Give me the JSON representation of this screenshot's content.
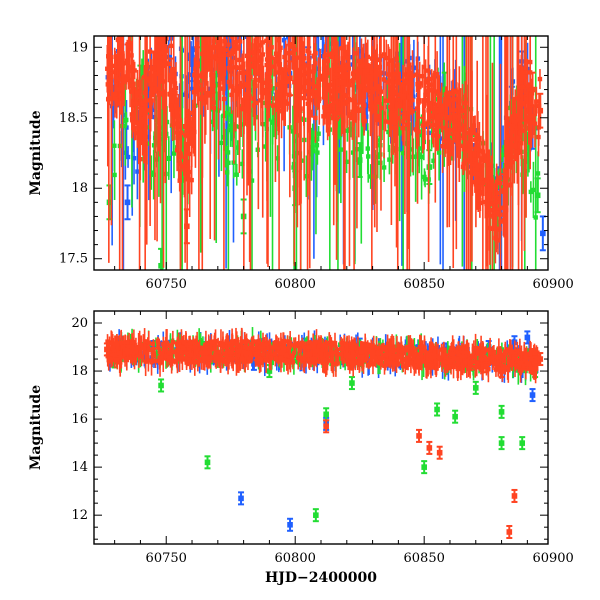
{
  "chart_data": [
    {
      "type": "scatter",
      "panel": "top",
      "title": "",
      "xlabel": "",
      "ylabel": "Magnitude",
      "xlim": [
        60722,
        60898
      ],
      "ylim": [
        19.08,
        17.42
      ],
      "y_inverted": true,
      "xticks": [
        "60750",
        "60800",
        "60850",
        "60900"
      ],
      "yticks": [
        "17.5",
        "18",
        "18.5",
        "19"
      ],
      "series": [
        {
          "color": "#2060ff",
          "points": [
            [
              60732,
              18.8
            ],
            [
              60735,
              17.9
            ],
            [
              60748,
              18.92
            ],
            [
              60760,
              18.88
            ],
            [
              60775,
              18.95
            ],
            [
              60790,
              18.82
            ],
            [
              60805,
              18.88
            ],
            [
              60820,
              18.85
            ],
            [
              60838,
              18.6
            ],
            [
              60840,
              18.78
            ],
            [
              60845,
              18.7
            ],
            [
              60860,
              18.55
            ],
            [
              60870,
              18.3
            ],
            [
              60878,
              17.95
            ],
            [
              60884,
              18.6
            ],
            [
              60888,
              18.85
            ],
            [
              60892,
              18.4
            ],
            [
              60896,
              17.68
            ]
          ]
        },
        {
          "color": "#22dd33",
          "points": [
            [
              60728,
              17.9
            ],
            [
              60740,
              18.75
            ],
            [
              60748,
              17.45
            ],
            [
              60765,
              18.8
            ],
            [
              60780,
              17.8
            ],
            [
              60790,
              18.6
            ],
            [
              60800,
              18.0
            ],
            [
              60812,
              18.7
            ],
            [
              60825,
              18.2
            ],
            [
              60840,
              18.5
            ],
            [
              60852,
              18.15
            ],
            [
              60858,
              18.7
            ],
            [
              60870,
              18.25
            ],
            [
              60878,
              17.85
            ],
            [
              60885,
              18.5
            ],
            [
              60894,
              17.95
            ]
          ]
        },
        {
          "color": "#ff4422",
          "points": [
            [
              60728,
              18.85
            ],
            [
              60735,
              18.9
            ],
            [
              60740,
              18.45
            ],
            [
              60745,
              18.85
            ],
            [
              60752,
              18.8
            ],
            [
              60758,
              17.73
            ],
            [
              60762,
              18.88
            ],
            [
              60768,
              18.8
            ],
            [
              60775,
              18.85
            ],
            [
              60782,
              18.78
            ],
            [
              60790,
              18.82
            ],
            [
              60798,
              18.78
            ],
            [
              60805,
              18.75
            ],
            [
              60812,
              18.7
            ],
            [
              60818,
              18.75
            ],
            [
              60825,
              18.72
            ],
            [
              60832,
              18.72
            ],
            [
              60838,
              18.68
            ],
            [
              60842,
              18.65
            ],
            [
              60848,
              18.62
            ],
            [
              60852,
              18.6
            ],
            [
              60856,
              18.55
            ],
            [
              60860,
              18.5
            ],
            [
              60864,
              18.42
            ],
            [
              60868,
              18.3
            ],
            [
              60872,
              18.1
            ],
            [
              60875,
              17.95
            ],
            [
              60878,
              17.82
            ],
            [
              60881,
              17.98
            ],
            [
              60884,
              18.3
            ],
            [
              60888,
              18.6
            ],
            [
              60892,
              18.7
            ],
            [
              60895,
              18.55
            ]
          ]
        }
      ]
    },
    {
      "type": "scatter",
      "panel": "bottom",
      "title": "",
      "xlabel": "HJD−2400000",
      "ylabel": "Magnitude",
      "xlim": [
        60722,
        60898
      ],
      "ylim": [
        20.5,
        10.8
      ],
      "y_inverted": true,
      "xticks": [
        "60750",
        "60800",
        "60850",
        "60900"
      ],
      "yticks": [
        "12",
        "14",
        "16",
        "18",
        "20"
      ],
      "series": [
        {
          "color": "#2060ff",
          "points": [
            [
              60730,
              18.9
            ],
            [
              60745,
              19.0
            ],
            [
              60760,
              19.0
            ],
            [
              60779,
              12.7
            ],
            [
              60784,
              18.3
            ],
            [
              60798,
              11.6
            ],
            [
              60804,
              19.1
            ],
            [
              60812,
              15.8
            ],
            [
              60825,
              19.1
            ],
            [
              60840,
              18.9
            ],
            [
              60858,
              18.9
            ],
            [
              60875,
              19.0
            ],
            [
              60885,
              19.2
            ],
            [
              60890,
              19.4
            ],
            [
              60892,
              17.0
            ]
          ]
        },
        {
          "color": "#22dd33",
          "points": [
            [
              60730,
              18.4
            ],
            [
              60748,
              17.4
            ],
            [
              60766,
              14.2
            ],
            [
              60790,
              18.0
            ],
            [
              60808,
              12.0
            ],
            [
              60812,
              16.2
            ],
            [
              60822,
              17.5
            ],
            [
              60850,
              14.0
            ],
            [
              60855,
              16.4
            ],
            [
              60862,
              16.1
            ],
            [
              60870,
              17.3
            ],
            [
              60880,
              16.3
            ],
            [
              60880,
              15.0
            ],
            [
              60888,
              15.0
            ],
            [
              60893,
              18.0
            ]
          ]
        },
        {
          "color": "#ff4422",
          "points": [
            [
              60727,
              18.9
            ],
            [
              60735,
              18.8
            ],
            [
              60745,
              18.7
            ],
            [
              60755,
              18.8
            ],
            [
              60765,
              18.75
            ],
            [
              60775,
              18.8
            ],
            [
              60785,
              18.7
            ],
            [
              60795,
              18.75
            ],
            [
              60805,
              18.7
            ],
            [
              60812,
              15.7
            ],
            [
              60820,
              18.65
            ],
            [
              60830,
              18.6
            ],
            [
              60840,
              18.6
            ],
            [
              60848,
              15.3
            ],
            [
              60852,
              14.8
            ],
            [
              60856,
              14.6
            ],
            [
              60860,
              18.4
            ],
            [
              60868,
              18.3
            ],
            [
              60874,
              18.2
            ],
            [
              60880,
              18.0
            ],
            [
              60883,
              11.3
            ],
            [
              60885,
              12.8
            ],
            [
              60890,
              18.3
            ],
            [
              60895,
              18.5
            ]
          ]
        }
      ]
    }
  ]
}
